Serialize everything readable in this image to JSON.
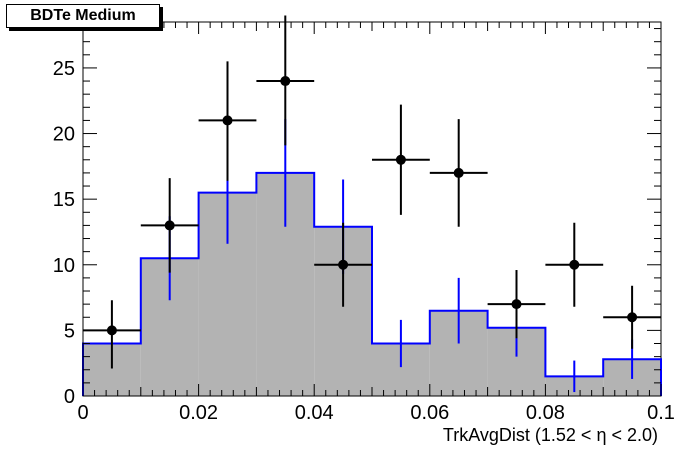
{
  "chart_data": {
    "type": "bar",
    "title": "BDTe Medium",
    "xlabel": "TrkAvgDist (1.52 <  η < 2.0)",
    "ylabel": "",
    "xlim": [
      0,
      0.1
    ],
    "ylim": [
      0,
      28.5
    ],
    "x_ticks": [
      0,
      0.02,
      0.04,
      0.06,
      0.08,
      0.1
    ],
    "x_tick_labels": [
      "0",
      "0.02",
      "0.04",
      "0.06",
      "0.08",
      "0.1"
    ],
    "y_ticks": [
      0,
      5,
      10,
      15,
      20,
      25
    ],
    "y_tick_labels": [
      "0",
      "5",
      "10",
      "15",
      "20",
      "25"
    ],
    "bin_edges": [
      0,
      0.01,
      0.02,
      0.03,
      0.04,
      0.05,
      0.06,
      0.07,
      0.08,
      0.09,
      0.1
    ],
    "histogram": {
      "values": [
        4.0,
        10.5,
        15.5,
        17.0,
        12.9,
        4.0,
        6.5,
        5.2,
        1.5,
        2.8
      ],
      "errors": [
        0,
        3.2,
        3.9,
        4.1,
        3.6,
        1.8,
        2.5,
        2.2,
        1.2,
        1.5
      ],
      "fill_color": "#b3b3b3",
      "line_color": "#0000ff"
    },
    "data_points": {
      "x": [
        0.005,
        0.015,
        0.025,
        0.035,
        0.045,
        0.055,
        0.065,
        0.075,
        0.085,
        0.095
      ],
      "y": [
        5,
        13,
        21,
        24,
        10,
        18,
        17,
        7,
        10,
        6
      ],
      "err_low": [
        2.9,
        3.6,
        4.6,
        4.9,
        3.2,
        4.2,
        4.1,
        2.6,
        3.2,
        2.4
      ],
      "err_high": [
        2.3,
        3.6,
        4.5,
        5.0,
        3.2,
        4.2,
        4.1,
        2.6,
        3.2,
        2.4
      ],
      "x_err": 0.005,
      "color": "#000000"
    }
  }
}
